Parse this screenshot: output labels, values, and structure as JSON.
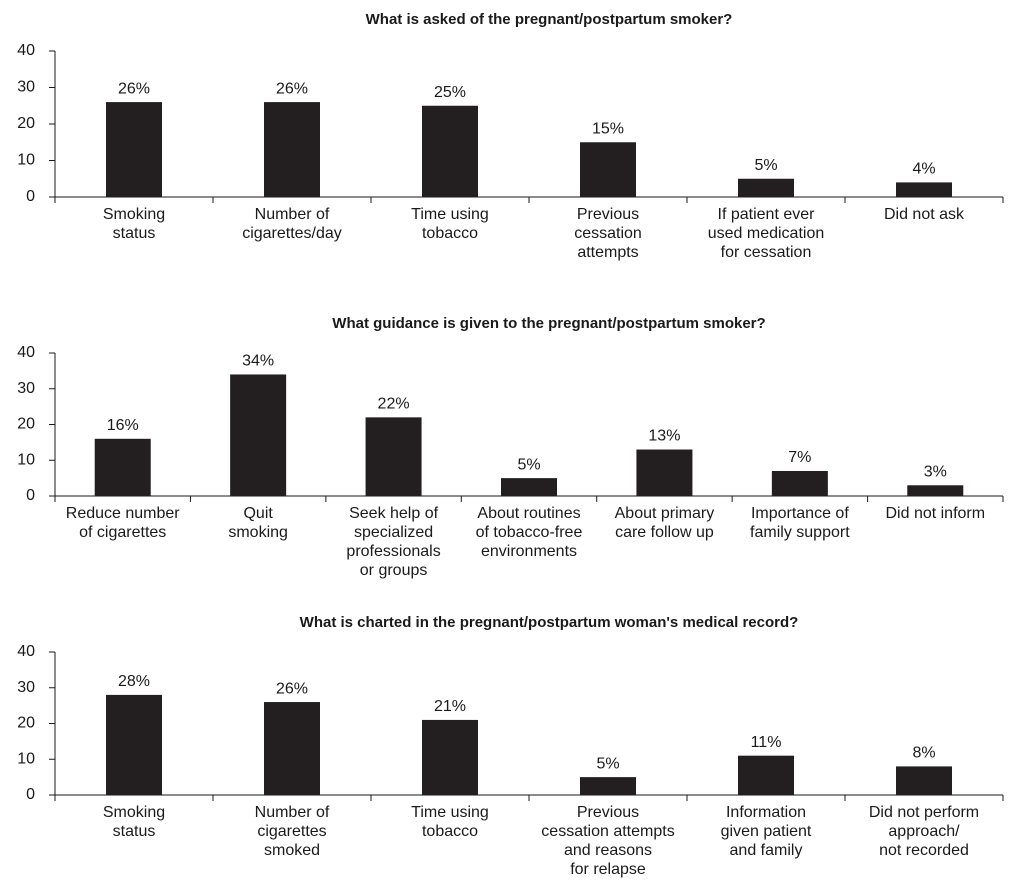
{
  "chart_data": [
    {
      "type": "bar",
      "title": "What is asked of the pregnant/postpartum smoker?",
      "categories": [
        "Smoking\nstatus",
        "Number of\ncigarettes/day",
        "Time using\ntobacco",
        "Previous\ncessation\nattempts",
        "If patient ever\nused medication\nfor cessation",
        "Did not ask"
      ],
      "values": [
        26,
        26,
        25,
        15,
        5,
        4
      ],
      "value_labels": [
        "26%",
        "26%",
        "25%",
        "15%",
        "5%",
        "4%"
      ],
      "color": "#231f20",
      "ylim": [
        0,
        40
      ],
      "yticks": [
        0,
        10,
        20,
        30,
        40
      ]
    },
    {
      "type": "bar",
      "title": "What guidance is given to the pregnant/postpartum smoker?",
      "categories": [
        "Reduce number\nof cigarettes",
        "Quit\nsmoking",
        "Seek help of\nspecialized\nprofessionals\nor groups",
        "About routines\nof tobacco-free\nenvironments",
        "About primary\ncare follow up",
        "Importance of\nfamily support",
        "Did not inform"
      ],
      "values": [
        16,
        34,
        22,
        5,
        13,
        7,
        3
      ],
      "value_labels": [
        "16%",
        "34%",
        "22%",
        "5%",
        "13%",
        "7%",
        "3%"
      ],
      "color": "#231f20",
      "ylim": [
        0,
        40
      ],
      "yticks": [
        0,
        10,
        20,
        30,
        40
      ]
    },
    {
      "type": "bar",
      "title": "What is charted in the pregnant/postpartum woman's medical record?",
      "categories": [
        "Smoking\nstatus",
        "Number of\ncigarettes\nsmoked",
        "Time using\ntobacco",
        "Previous\ncessation attempts\nand reasons\nfor relapse",
        "Information\ngiven patient\nand family",
        "Did not perform\napproach/\nnot recorded"
      ],
      "values": [
        28,
        26,
        21,
        5,
        11,
        8
      ],
      "value_labels": [
        "28%",
        "26%",
        "21%",
        "5%",
        "11%",
        "8%"
      ],
      "color": "#231f20",
      "ylim": [
        0,
        40
      ],
      "yticks": [
        0,
        10,
        20,
        30,
        40
      ]
    }
  ]
}
